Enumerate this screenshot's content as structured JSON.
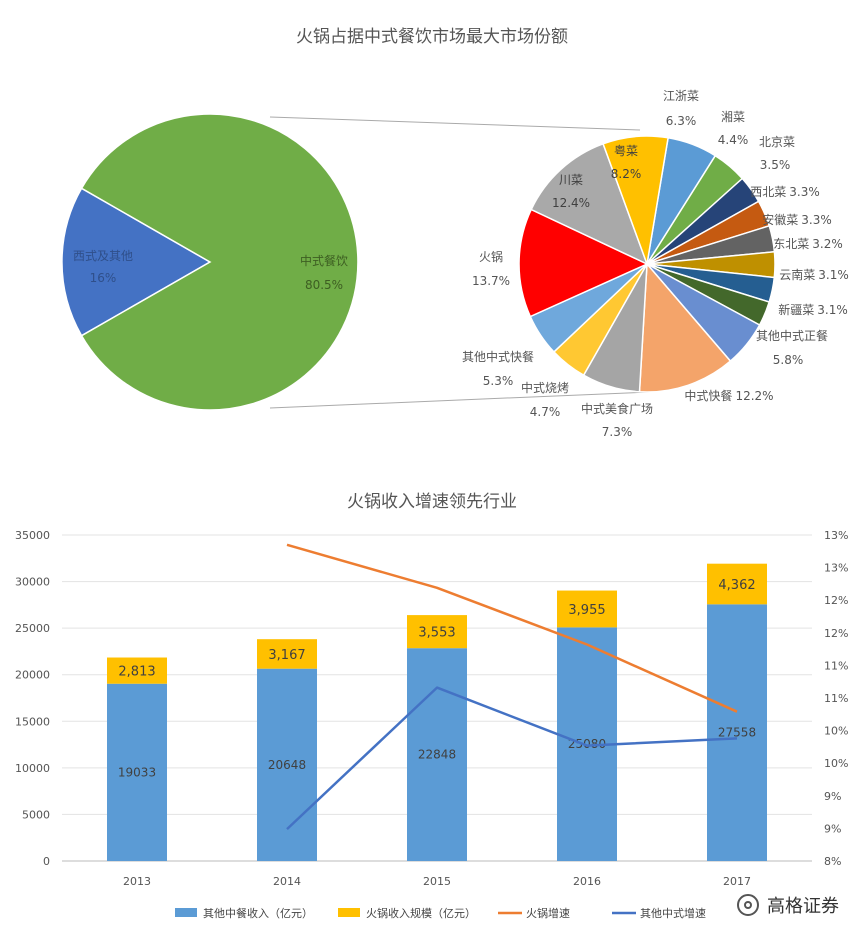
{
  "chart_data": [
    {
      "type": "pie",
      "title": "火锅占据中式餐饮市场最大市场份额",
      "slices": [
        {
          "label": "西式及其他",
          "value": 16,
          "display": "16%",
          "color": "#4472C4"
        },
        {
          "label": "中式餐饮",
          "value": 80.5,
          "display": "80.5%",
          "color": "#70AD47"
        }
      ],
      "breakdown_of": "中式餐饮",
      "sub_pie": {
        "type": "pie",
        "slices": [
          {
            "label": "江浙菜",
            "value": 6.3,
            "display": "6.3%",
            "color": "#5B9BD5"
          },
          {
            "label": "湘菜",
            "value": 4.4,
            "display": "4.4%",
            "color": "#70AD47"
          },
          {
            "label": "北京菜",
            "value": 3.5,
            "display": "3.5%",
            "color": "#264478"
          },
          {
            "label": "西北菜",
            "value": 3.3,
            "display": "3.3%",
            "color": "#C55A11"
          },
          {
            "label": "安徽菜",
            "value": 3.3,
            "display": "3.3%",
            "color": "#636363"
          },
          {
            "label": "东北菜",
            "value": 3.2,
            "display": "3.2%",
            "color": "#BF9000"
          },
          {
            "label": "云南菜",
            "value": 3.1,
            "display": "3.1%",
            "color": "#255E91"
          },
          {
            "label": "新疆菜",
            "value": 3.1,
            "display": "3.1%",
            "color": "#43682B"
          },
          {
            "label": "其他中式正餐",
            "value": 5.8,
            "display": "5.8%",
            "color": "#698ED0"
          },
          {
            "label": "中式快餐",
            "value": 12.2,
            "display": "12.2%",
            "color": "#F4A46A"
          },
          {
            "label": "中式美食广场",
            "value": 7.3,
            "display": "7.3%",
            "color": "#A5A5A5"
          },
          {
            "label": "中式烧烤",
            "value": 4.7,
            "display": "4.7%",
            "color": "#FFC832"
          },
          {
            "label": "其他中式快餐",
            "value": 5.3,
            "display": "5.3%",
            "color": "#6FA8DC"
          },
          {
            "label": "火锅",
            "value": 13.7,
            "display": "13.7%",
            "color": "#FF0000"
          },
          {
            "label": "川菜",
            "value": 12.4,
            "display": "12.4%",
            "color": "#A9A9A9"
          },
          {
            "label": "粤菜",
            "value": 8.2,
            "display": "8.2%",
            "color": "#FFC000"
          }
        ]
      }
    },
    {
      "type": "bar",
      "stacked": true,
      "title": "火锅收入增速领先行业",
      "categories": [
        "2013",
        "2014",
        "2015",
        "2016",
        "2017"
      ],
      "ylim": [
        0,
        35000
      ],
      "yticks": [
        "0",
        "5000",
        "10000",
        "15000",
        "20000",
        "25000",
        "30000",
        "35000"
      ],
      "y2lim": [
        0.08,
        0.13
      ],
      "y2ticks": [
        "8%",
        "9%",
        "9%",
        "10%",
        "10%",
        "11%",
        "11%",
        "12%",
        "12%",
        "13%",
        "13%"
      ],
      "series": [
        {
          "name": "其他中餐收入（亿元）",
          "kind": "bar",
          "color": "#5B9BD5",
          "values": [
            19033,
            20648,
            22848,
            25080,
            27558
          ],
          "labels": [
            "19033",
            "20648",
            "22848",
            "25080",
            "27558"
          ]
        },
        {
          "name": "火锅收入规模（亿元）",
          "kind": "bar",
          "color": "#FFC000",
          "values": [
            2813,
            3167,
            3553,
            3955,
            4362
          ],
          "labels": [
            "2,813",
            "3,167",
            "3,553",
            "3,955",
            "4,362"
          ]
        },
        {
          "name": "火锅增速",
          "kind": "line",
          "axis": "right",
          "color": "#ED7D31",
          "values": [
            null,
            0.1285,
            0.1219,
            0.1132,
            0.1029
          ]
        },
        {
          "name": "其他中式增速",
          "kind": "line",
          "axis": "right",
          "color": "#4472C4",
          "values": [
            null,
            0.0849,
            0.1066,
            0.0977,
            0.0988
          ]
        }
      ],
      "legend_position": "bottom"
    }
  ],
  "watermark": {
    "text": "高格证券"
  }
}
